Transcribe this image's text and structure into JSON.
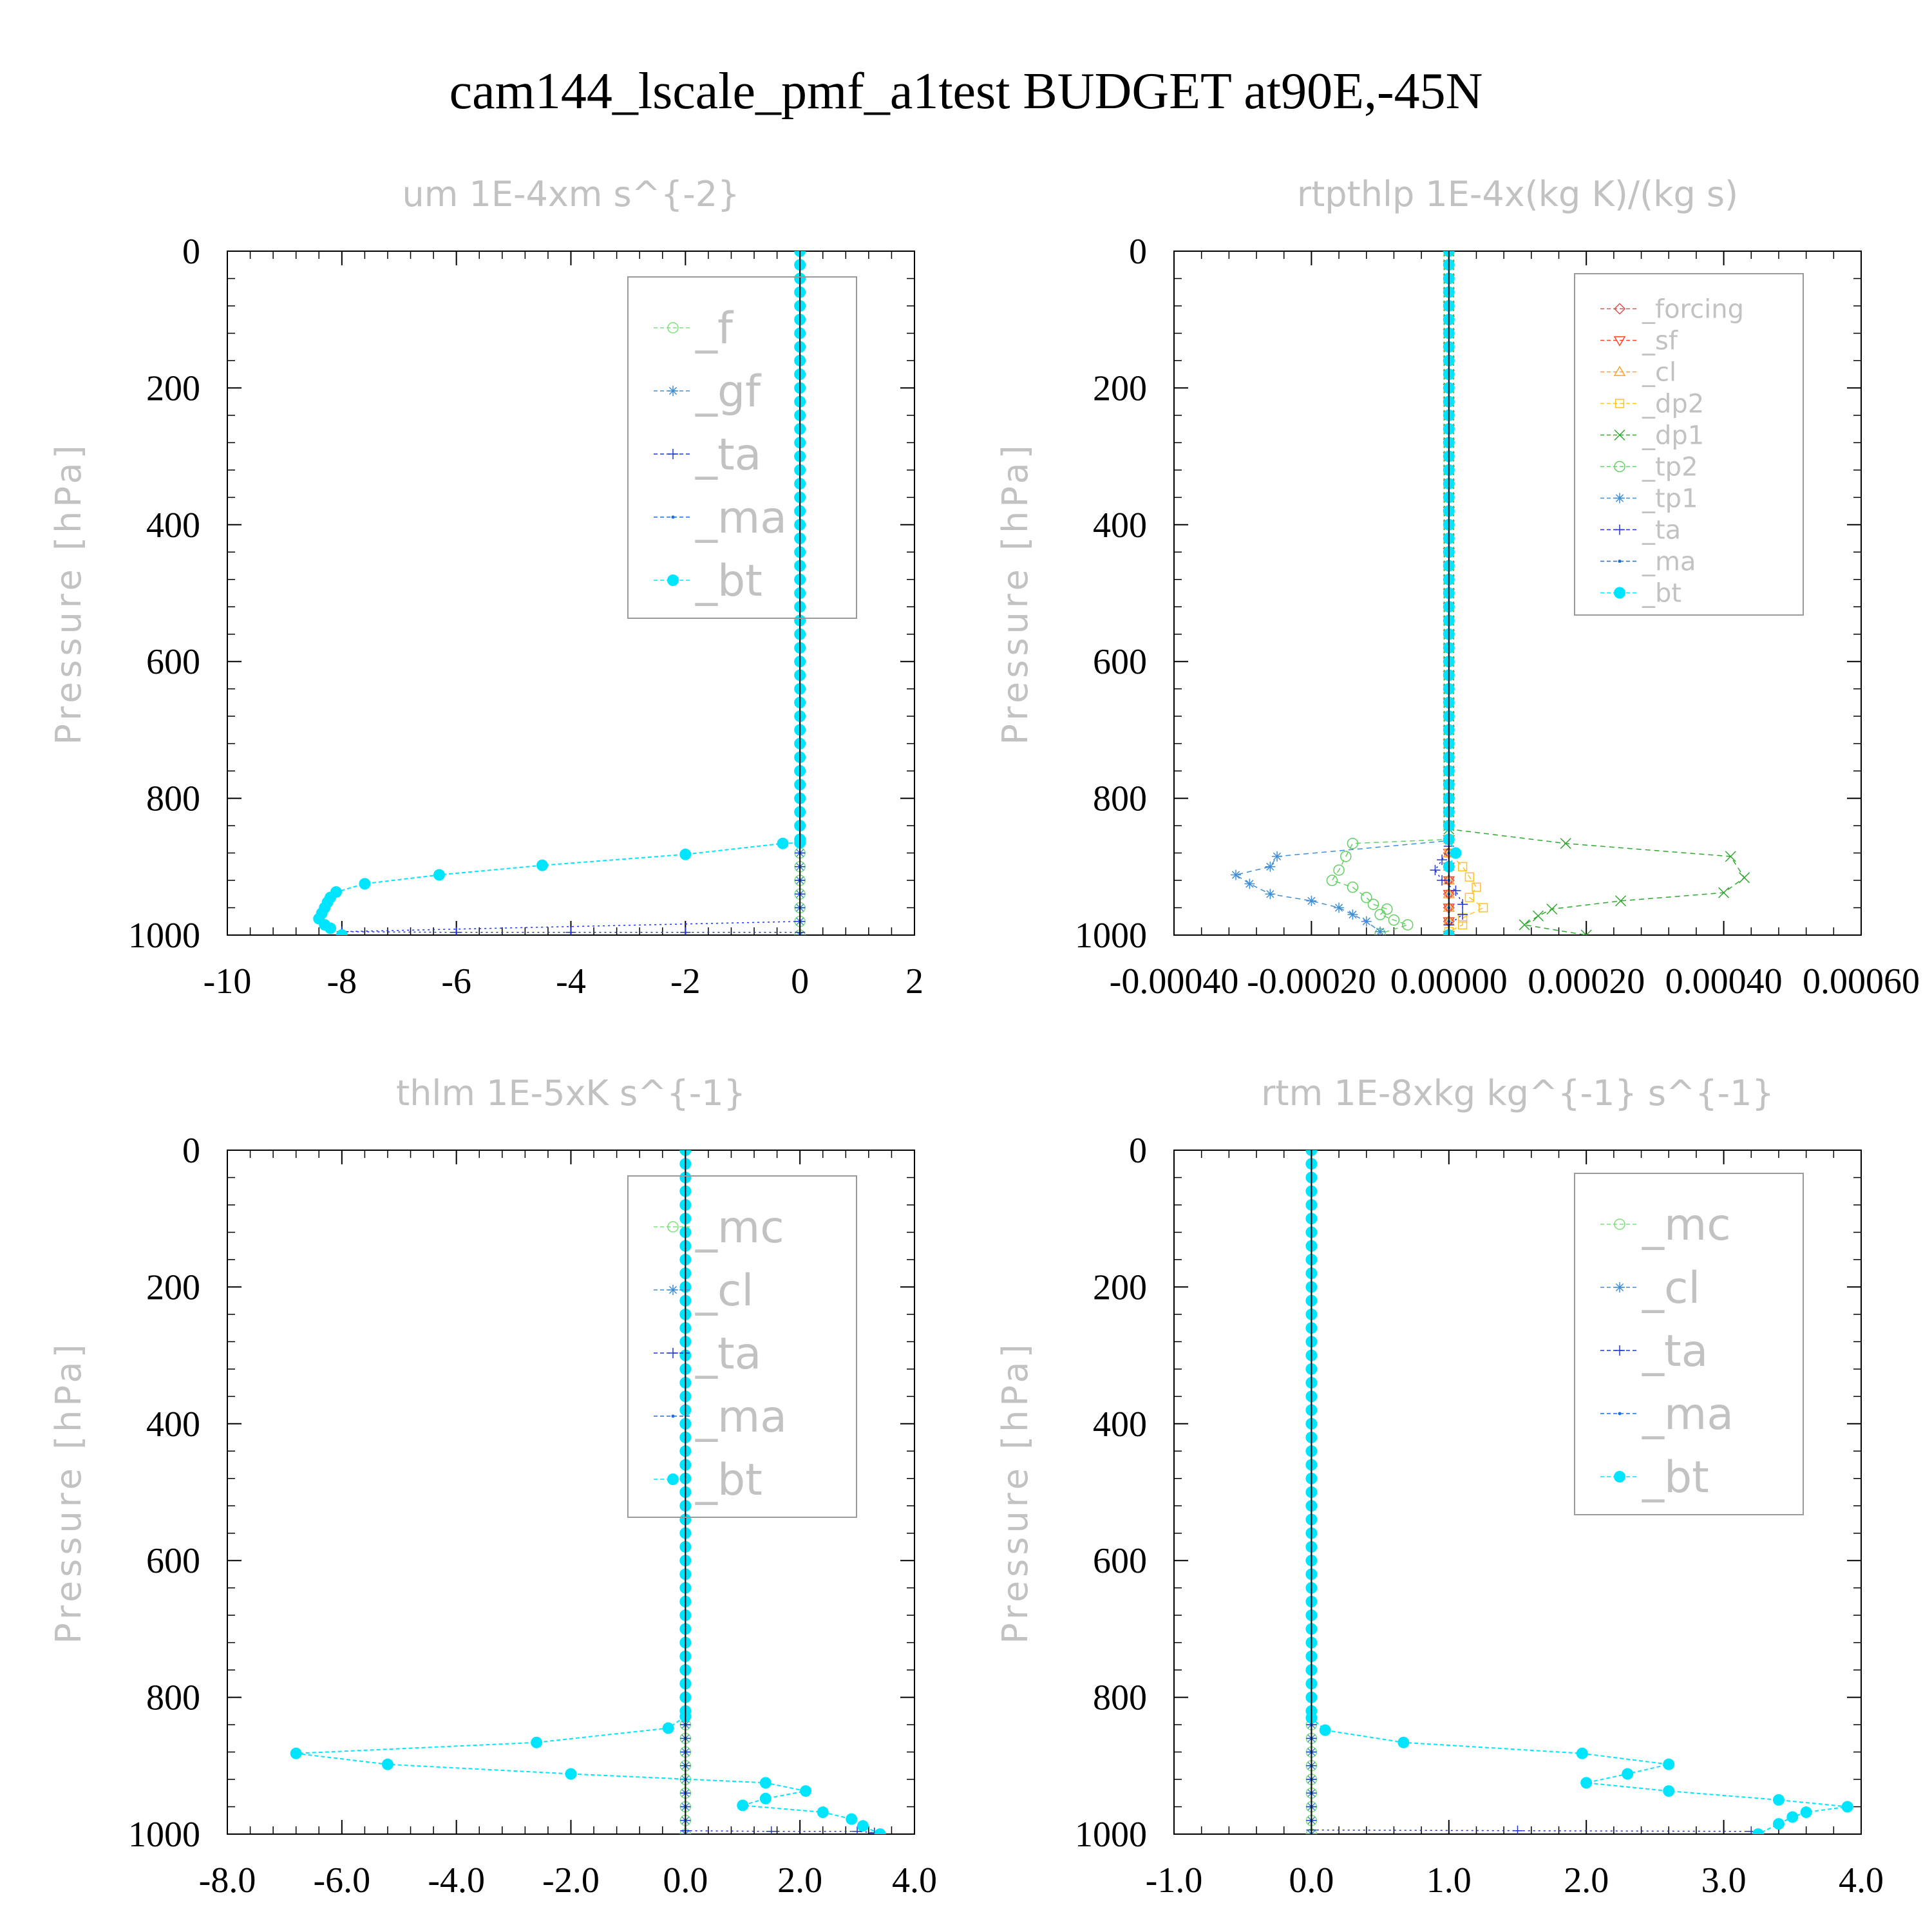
{
  "figure_title": "cam144_lscale_pmf_a1test  BUDGET at90E,-45N",
  "colors": {
    "f": "#7be07b",
    "gf": "#3f8fd8",
    "ta": "#1f35d8",
    "ma": "#1570e8",
    "bt": "#00e5ff",
    "forcing": "#e05050",
    "sf": "#ff4422",
    "cl_orange": "#ffa030",
    "dp2": "#ffc125",
    "dp1": "#2ea82e",
    "tp2": "#60d060",
    "tp1": "#3f8fd8",
    "mc": "#7be07b",
    "cl": "#3f8fd8",
    "zero_line": "#000000"
  },
  "chart_data": [
    {
      "type": "line",
      "title": "um   1E-4xm s^{-2}",
      "ylabel": "Pressure [hPa]",
      "xlabel": "",
      "xlim": [
        -10,
        2
      ],
      "ylim": [
        0,
        1000
      ],
      "y_reversed": true,
      "xticks": [
        "-10",
        "-8",
        "-6",
        "-4",
        "-2",
        "0",
        "2"
      ],
      "xtick_values": [
        -10,
        -8,
        -6,
        -4,
        -2,
        0,
        2
      ],
      "yticks": [
        "0",
        "200",
        "400",
        "600",
        "800",
        "1000"
      ],
      "ytick_values": [
        0,
        200,
        400,
        600,
        800,
        1000
      ],
      "legend_font": 68,
      "legend": [
        {
          "key": "f",
          "label": "_f",
          "marker": "circle-open"
        },
        {
          "key": "gf",
          "label": "_gf",
          "marker": "asterisk"
        },
        {
          "key": "ta",
          "label": "_ta",
          "marker": "plus"
        },
        {
          "key": "ma",
          "label": "_ma",
          "marker": "dot"
        },
        {
          "key": "bt",
          "label": "_bt",
          "marker": "circle-filled"
        }
      ],
      "series": [
        {
          "name": "_f",
          "key": "f",
          "marker": "circle-open",
          "dash": "8,6",
          "zero": true
        },
        {
          "name": "_gf",
          "key": "gf",
          "marker": "asterisk",
          "dash": "8,6",
          "zero": true
        },
        {
          "name": "_ta",
          "key": "ta",
          "marker": "plus",
          "dash": "3,5",
          "points": [
            [
              0,
              0
            ],
            [
              0,
              980
            ],
            [
              -8,
              995
            ],
            [
              -6,
              996
            ],
            [
              -4,
              996
            ],
            [
              -2,
              996
            ],
            [
              0,
              996
            ],
            [
              0,
              1000
            ]
          ],
          "markers_at": [
            [
              0,
              995
            ]
          ]
        },
        {
          "name": "_ma",
          "key": "ma",
          "marker": "dot",
          "dash": "8,6",
          "zero": true
        },
        {
          "name": "_bt",
          "key": "bt",
          "marker": "circle-filled",
          "dash": "6,4",
          "points": [
            [
              0,
              0
            ],
            [
              0,
              865
            ],
            [
              -0.3,
              866
            ],
            [
              -2.0,
              882
            ],
            [
              -4.5,
              898
            ],
            [
              -6.3,
              912
            ],
            [
              -7.6,
              925
            ],
            [
              -8.1,
              937
            ],
            [
              -8.2,
              945
            ],
            [
              -8.25,
              952
            ],
            [
              -8.3,
              960
            ],
            [
              -8.35,
              968
            ],
            [
              -8.4,
              976
            ],
            [
              -8.3,
              985
            ],
            [
              -8.2,
              990
            ],
            [
              -8.0,
              1000
            ]
          ]
        }
      ]
    },
    {
      "type": "line",
      "title": "rtpthlp   1E-4x(kg K)/(kg s)",
      "ylabel": "Pressure [hPa]",
      "xlabel": "",
      "xlim": [
        -0.0004,
        0.0006
      ],
      "ylim": [
        0,
        1000
      ],
      "y_reversed": true,
      "xticks": [
        "-0.00040",
        "-0.00020",
        "0.00000",
        "0.00020",
        "0.00040",
        "0.00060"
      ],
      "xtick_values": [
        -0.0004,
        -0.0002,
        0,
        0.0002,
        0.0004,
        0.0006
      ],
      "yticks": [
        "0",
        "200",
        "400",
        "600",
        "800",
        "1000"
      ],
      "ytick_values": [
        0,
        200,
        400,
        600,
        800,
        1000
      ],
      "legend_font": 40,
      "legend": [
        {
          "key": "forcing",
          "label": "_forcing",
          "marker": "diamond"
        },
        {
          "key": "sf",
          "label": "_sf",
          "marker": "triangle-down"
        },
        {
          "key": "cl_orange",
          "label": "_cl",
          "marker": "triangle-up"
        },
        {
          "key": "dp2",
          "label": "_dp2",
          "marker": "square"
        },
        {
          "key": "dp1",
          "label": "_dp1",
          "marker": "cross"
        },
        {
          "key": "tp2",
          "label": "_tp2",
          "marker": "circle-open"
        },
        {
          "key": "tp1",
          "label": "_tp1",
          "marker": "asterisk"
        },
        {
          "key": "ta",
          "label": "_ta",
          "marker": "plus"
        },
        {
          "key": "ma",
          "label": "_ma",
          "marker": "dot"
        },
        {
          "key": "bt",
          "label": "_bt",
          "marker": "circle-filled"
        }
      ],
      "series": [
        {
          "name": "_forcing",
          "key": "forcing",
          "marker": "diamond",
          "dash": "8,6",
          "zero": true
        },
        {
          "name": "_sf",
          "key": "sf",
          "marker": "triangle-down",
          "dash": "8,6",
          "zero": true
        },
        {
          "name": "_cl",
          "key": "cl_orange",
          "marker": "triangle-up",
          "dash": "8,6",
          "zero": true
        },
        {
          "name": "_dp2",
          "key": "dp2",
          "marker": "square",
          "dash": "8,6",
          "points": [
            [
              0,
              0
            ],
            [
              0,
              880
            ],
            [
              2e-05,
              900
            ],
            [
              3e-05,
              915
            ],
            [
              4e-05,
              930
            ],
            [
              3e-05,
              945
            ],
            [
              5e-05,
              960
            ],
            [
              2e-05,
              975
            ],
            [
              2e-05,
              985
            ],
            [
              0,
              995
            ],
            [
              0,
              1000
            ]
          ]
        },
        {
          "name": "_dp1",
          "key": "dp1",
          "marker": "cross",
          "dash": "8,6",
          "points": [
            [
              0,
              0
            ],
            [
              0,
              845
            ],
            [
              0.00017,
              866
            ],
            [
              0.00041,
              885
            ],
            [
              0.00043,
              916
            ],
            [
              0.0004,
              938
            ],
            [
              0.00025,
              950
            ],
            [
              0.00015,
              962
            ],
            [
              0.00013,
              972
            ],
            [
              0.00011,
              985
            ],
            [
              0.0002,
              1000
            ]
          ]
        },
        {
          "name": "_tp2",
          "key": "tp2",
          "marker": "circle-open",
          "dash": "8,6",
          "points": [
            [
              0,
              0
            ],
            [
              0,
              860
            ],
            [
              -0.00014,
              866
            ],
            [
              -0.00015,
              885
            ],
            [
              -0.00016,
              905
            ],
            [
              -0.00017,
              920
            ],
            [
              -0.00014,
              930
            ],
            [
              -0.00012,
              945
            ],
            [
              -0.00011,
              955
            ],
            [
              -9e-05,
              962
            ],
            [
              -0.0001,
              970
            ],
            [
              -8e-05,
              978
            ],
            [
              -6e-05,
              985
            ],
            [
              -0.0001,
              998
            ]
          ]
        },
        {
          "name": "_tp1",
          "key": "tp1",
          "marker": "asterisk",
          "dash": "8,6",
          "points": [
            [
              0,
              0
            ],
            [
              0,
              862
            ],
            [
              -0.00025,
              885
            ],
            [
              -0.00026,
              900
            ],
            [
              -0.00031,
              912
            ],
            [
              -0.00029,
              925
            ],
            [
              -0.00026,
              940
            ],
            [
              -0.0002,
              950
            ],
            [
              -0.00016,
              960
            ],
            [
              -0.00014,
              970
            ],
            [
              -0.00012,
              980
            ],
            [
              -0.0001,
              995
            ]
          ]
        },
        {
          "name": "_ta",
          "key": "ta",
          "marker": "plus",
          "dash": "3,5",
          "points": [
            [
              0,
              0
            ],
            [
              0,
              870
            ],
            [
              -1e-05,
              890
            ],
            [
              -2e-05,
              905
            ],
            [
              -1e-05,
              920
            ],
            [
              1e-05,
              935
            ],
            [
              2e-05,
              955
            ],
            [
              2e-05,
              970
            ],
            [
              0,
              985
            ],
            [
              0,
              1000
            ]
          ]
        },
        {
          "name": "_ma",
          "key": "ma",
          "marker": "dot",
          "dash": "8,6",
          "zero": true
        },
        {
          "name": "_bt",
          "key": "bt",
          "marker": "circle-filled",
          "dash": "6,4",
          "points": [
            [
              0,
              0
            ],
            [
              0,
              860
            ],
            [
              1e-05,
              880
            ],
            [
              0,
              900
            ],
            [
              0,
              1000
            ]
          ]
        }
      ]
    },
    {
      "type": "line",
      "title": "thlm   1E-5xK s^{-1}",
      "ylabel": "Pressure [hPa]",
      "xlabel": "",
      "xlim": [
        -8,
        4
      ],
      "ylim": [
        0,
        1000
      ],
      "y_reversed": true,
      "xticks": [
        "-8.0",
        "-6.0",
        "-4.0",
        "-2.0",
        "0.0",
        "2.0",
        "4.0"
      ],
      "xtick_values": [
        -8,
        -6,
        -4,
        -2,
        0,
        2,
        4
      ],
      "yticks": [
        "0",
        "200",
        "400",
        "600",
        "800",
        "1000"
      ],
      "ytick_values": [
        0,
        200,
        400,
        600,
        800,
        1000
      ],
      "legend_font": 68,
      "legend": [
        {
          "key": "mc",
          "label": "_mc",
          "marker": "circle-open"
        },
        {
          "key": "cl",
          "label": "_cl",
          "marker": "asterisk"
        },
        {
          "key": "ta",
          "label": "_ta",
          "marker": "plus"
        },
        {
          "key": "ma",
          "label": "_ma",
          "marker": "dot"
        },
        {
          "key": "bt",
          "label": "_bt",
          "marker": "circle-filled"
        }
      ],
      "series": [
        {
          "name": "_mc",
          "key": "mc",
          "marker": "circle-open",
          "dash": "8,6",
          "zero": true
        },
        {
          "name": "_cl",
          "key": "cl",
          "marker": "asterisk",
          "dash": "8,6",
          "zero": true
        },
        {
          "name": "_ta",
          "key": "ta",
          "marker": "plus",
          "dash": "3,5",
          "points": [
            [
              0,
              0
            ],
            [
              0,
              995
            ],
            [
              1.5,
              996
            ],
            [
              3,
              996
            ],
            [
              3.3,
              998
            ]
          ]
        },
        {
          "name": "_ma",
          "key": "ma",
          "marker": "dot",
          "dash": "8,6",
          "zero": true
        },
        {
          "name": "_bt",
          "key": "bt",
          "marker": "circle-filled",
          "dash": "6,4",
          "points": [
            [
              0,
              0
            ],
            [
              0,
              828
            ],
            [
              -0.3,
              845
            ],
            [
              -2.6,
              866
            ],
            [
              -6.8,
              882
            ],
            [
              -5.2,
              898
            ],
            [
              -2.0,
              912
            ],
            [
              1.4,
              925
            ],
            [
              2.1,
              937
            ],
            [
              1.4,
              948
            ],
            [
              1.0,
              958
            ],
            [
              2.4,
              968
            ],
            [
              2.9,
              978
            ],
            [
              3.1,
              988
            ],
            [
              3.4,
              1000
            ]
          ]
        }
      ]
    },
    {
      "type": "line",
      "title": "rtm   1E-8xkg kg^{-1} s^{-1}",
      "ylabel": "Pressure [hPa]",
      "xlabel": "",
      "xlim": [
        -1,
        4
      ],
      "ylim": [
        0,
        1000
      ],
      "y_reversed": true,
      "xticks": [
        "-1.0",
        "0.0",
        "1.0",
        "2.0",
        "3.0",
        "4.0"
      ],
      "xtick_values": [
        -1,
        0,
        1,
        2,
        3,
        4
      ],
      "yticks": [
        "0",
        "200",
        "400",
        "600",
        "800",
        "1000"
      ],
      "ytick_values": [
        0,
        200,
        400,
        600,
        800,
        1000
      ],
      "legend_font": 68,
      "legend": [
        {
          "key": "mc",
          "label": "_mc",
          "marker": "circle-open"
        },
        {
          "key": "cl",
          "label": "_cl",
          "marker": "asterisk"
        },
        {
          "key": "ta",
          "label": "_ta",
          "marker": "plus"
        },
        {
          "key": "ma",
          "label": "_ma",
          "marker": "dot"
        },
        {
          "key": "bt",
          "label": "_bt",
          "marker": "circle-filled"
        }
      ],
      "series": [
        {
          "name": "_mc",
          "key": "mc",
          "marker": "circle-open",
          "dash": "8,6",
          "zero": true
        },
        {
          "name": "_cl",
          "key": "cl",
          "marker": "asterisk",
          "dash": "8,6",
          "zero": true
        },
        {
          "name": "_ta",
          "key": "ta",
          "marker": "plus",
          "dash": "3,5",
          "points": [
            [
              0,
              0
            ],
            [
              0,
              994
            ],
            [
              1.5,
              995
            ],
            [
              3.2,
              996
            ]
          ]
        },
        {
          "name": "_ma",
          "key": "ma",
          "marker": "dot",
          "dash": "8,6",
          "zero": true
        },
        {
          "name": "_bt",
          "key": "bt",
          "marker": "circle-filled",
          "dash": "6,4",
          "points": [
            [
              0,
              0
            ],
            [
              0,
              830
            ],
            [
              0.1,
              848
            ],
            [
              0.67,
              866
            ],
            [
              1.97,
              882
            ],
            [
              2.6,
              898
            ],
            [
              2.3,
              912
            ],
            [
              2.0,
              925
            ],
            [
              2.6,
              937
            ],
            [
              3.4,
              950
            ],
            [
              3.9,
              960
            ],
            [
              3.6,
              968
            ],
            [
              3.5,
              975
            ],
            [
              3.4,
              985
            ],
            [
              3.25,
              1000
            ]
          ]
        }
      ]
    }
  ]
}
